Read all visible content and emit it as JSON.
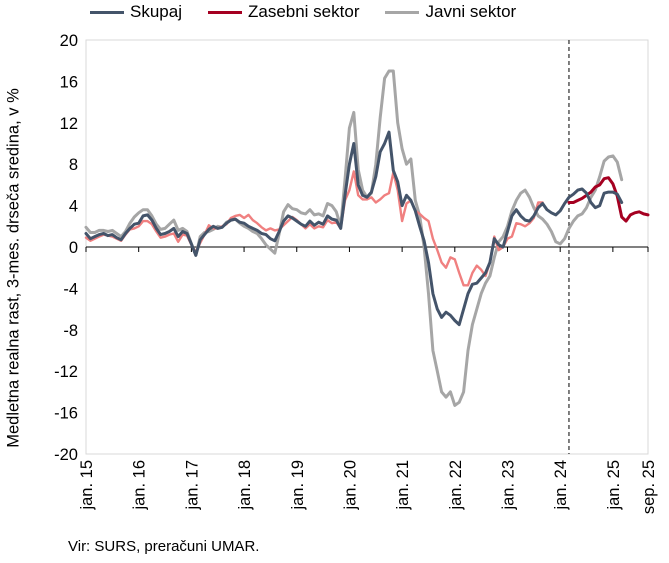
{
  "chart_data": {
    "type": "line",
    "title": "",
    "xlabel": "",
    "ylabel": "Medletna realna rast, 3-mes. drseča sredina, v %",
    "ylim": [
      -20,
      20
    ],
    "yticks": [
      "20",
      "16",
      "12",
      "8",
      "4",
      "0",
      "-4",
      "-8",
      "-12",
      "-16",
      "-20"
    ],
    "xlim": [
      "2015-01",
      "2025-09"
    ],
    "x_tick_labels": [
      "jan. 15",
      "jan. 16",
      "jan. 17",
      "jan. 18",
      "jan. 19",
      "jan. 20",
      "jan. 21",
      "jan. 22",
      "jan. 23",
      "jan. 24",
      "jan. 25",
      "sep. 25"
    ],
    "grid": false,
    "legend_position": "top",
    "vertical_marker": "2024-03",
    "source": "Vir: SURS, preračuni UMAR.",
    "colors": {
      "Skupaj": "#44546a",
      "Zasebni sektor": "#f08080",
      "Zasebni sektor recent": "#a50021",
      "Javni sektor": "#a6a6a6"
    },
    "series": [
      {
        "name": "Skupaj",
        "x_start": "2015-01",
        "values": [
          1.3,
          0.8,
          1.0,
          1.2,
          1.3,
          1.1,
          1.2,
          0.9,
          0.7,
          1.3,
          1.8,
          2.2,
          2.3,
          3.0,
          3.1,
          2.6,
          1.8,
          1.2,
          1.3,
          1.5,
          1.8,
          1.0,
          1.5,
          1.3,
          0.3,
          -0.8,
          0.7,
          1.2,
          1.7,
          2.0,
          1.8,
          1.9,
          2.3,
          2.6,
          2.7,
          2.4,
          2.3,
          2.0,
          1.8,
          1.6,
          1.3,
          1.2,
          0.8,
          0.6,
          1.5,
          2.5,
          3.0,
          2.8,
          2.5,
          2.2,
          2.0,
          2.5,
          2.1,
          2.4,
          2.2,
          3.0,
          2.7,
          2.6,
          1.8,
          5.0,
          8.0,
          10.0,
          6.0,
          5.0,
          4.8,
          5.3,
          6.8,
          9.2,
          10.0,
          11.1,
          7.4,
          6.3,
          4.0,
          5.0,
          4.5,
          3.5,
          2.0,
          0.6,
          -1.5,
          -4.5,
          -6.0,
          -6.8,
          -6.3,
          -6.6,
          -7.1,
          -7.5,
          -6.0,
          -4.5,
          -3.6,
          -3.5,
          -3.0,
          -2.5,
          -1.5,
          0.8,
          0.2,
          0.0,
          1.5,
          3.0,
          3.6,
          3.0,
          2.6,
          2.5,
          3.0,
          3.8,
          4.2,
          3.6,
          3.3,
          3.1,
          3.5,
          4.2,
          4.8,
          5.1,
          5.5,
          5.6,
          5.2,
          4.3,
          3.8,
          4.0,
          5.2,
          5.3,
          5.3,
          5.1,
          4.3
        ]
      },
      {
        "name": "Zasebni sektor",
        "x_start": "2015-01",
        "values": [
          0.9,
          0.6,
          0.8,
          1.0,
          1.2,
          1.1,
          1.0,
          0.8,
          0.6,
          1.2,
          1.7,
          1.8,
          2.0,
          2.5,
          2.5,
          2.2,
          1.5,
          0.9,
          1.0,
          1.2,
          1.3,
          0.5,
          1.2,
          1.1,
          0.2,
          -0.5,
          0.4,
          1.2,
          2.1,
          1.8,
          1.8,
          2.0,
          2.2,
          2.8,
          3.0,
          3.1,
          2.8,
          3.1,
          2.6,
          2.3,
          1.9,
          1.6,
          1.8,
          1.6,
          1.7,
          2.1,
          2.5,
          2.9,
          2.6,
          2.2,
          1.8,
          2.2,
          1.8,
          2.0,
          1.9,
          2.6,
          2.3,
          2.4,
          1.8,
          4.5,
          5.5,
          7.3,
          5.0,
          4.6,
          4.6,
          4.8,
          4.3,
          4.6,
          5.0,
          5.2,
          7.2,
          5.5,
          2.5,
          4.2,
          4.5,
          3.5,
          3.2,
          2.8,
          2.5,
          0.8,
          -0.3,
          -1.5,
          -2.0,
          -1.0,
          -1.2,
          -2.5,
          -3.7,
          -3.7,
          -2.5,
          -1.8,
          -2.2,
          -2.8,
          -1.5,
          1.0,
          -0.3,
          0.0,
          0.8,
          1.0,
          2.3,
          2.2,
          2.0,
          2.3,
          2.8,
          4.3,
          4.3
        ]
      },
      {
        "name": "Zasebni sektor",
        "x_start": "2024-03",
        "values": [
          4.3,
          4.3,
          4.5,
          4.7,
          5.0,
          5.3,
          5.8,
          6.0,
          6.6,
          6.7,
          6.1,
          4.9,
          2.9,
          2.5,
          3.1,
          3.3,
          3.4,
          3.2,
          3.1
        ]
      },
      {
        "name": "Javni sektor",
        "x_start": "2015-01",
        "values": [
          1.9,
          1.4,
          1.4,
          1.6,
          1.6,
          1.5,
          1.6,
          1.3,
          1.0,
          1.5,
          2.3,
          2.9,
          3.3,
          3.6,
          3.6,
          3.0,
          2.2,
          1.7,
          1.8,
          2.2,
          2.6,
          1.6,
          1.8,
          1.5,
          0.3,
          -0.8,
          1.0,
          1.4,
          1.5,
          1.7,
          2.0,
          1.9,
          2.4,
          2.6,
          2.7,
          2.3,
          2.0,
          1.8,
          1.5,
          1.3,
          0.8,
          0.2,
          -0.2,
          -0.6,
          1.3,
          3.4,
          4.1,
          3.7,
          3.6,
          3.3,
          3.2,
          3.6,
          3.1,
          3.2,
          3.0,
          4.2,
          4.0,
          3.4,
          2.0,
          6.5,
          11.5,
          13.0,
          7.5,
          5.5,
          4.8,
          5.2,
          8.0,
          12.5,
          16.3,
          17.0,
          17.0,
          12.0,
          9.5,
          8.0,
          8.5,
          4.5,
          3.0,
          0.0,
          -4.5,
          -10.0,
          -12.0,
          -14.0,
          -14.5,
          -14.0,
          -15.3,
          -15.0,
          -14.0,
          -10.0,
          -7.5,
          -6.0,
          -4.5,
          -3.5,
          -2.8,
          -1.0,
          0.5,
          1.0,
          2.0,
          3.5,
          4.5,
          5.2,
          5.5,
          4.8,
          3.8,
          3.0,
          2.7,
          2.2,
          1.5,
          0.5,
          0.3,
          0.8,
          1.8,
          2.5,
          3.0,
          3.2,
          3.8,
          4.8,
          5.5,
          6.8,
          8.3,
          8.7,
          8.8,
          8.2,
          6.5
        ]
      }
    ]
  }
}
